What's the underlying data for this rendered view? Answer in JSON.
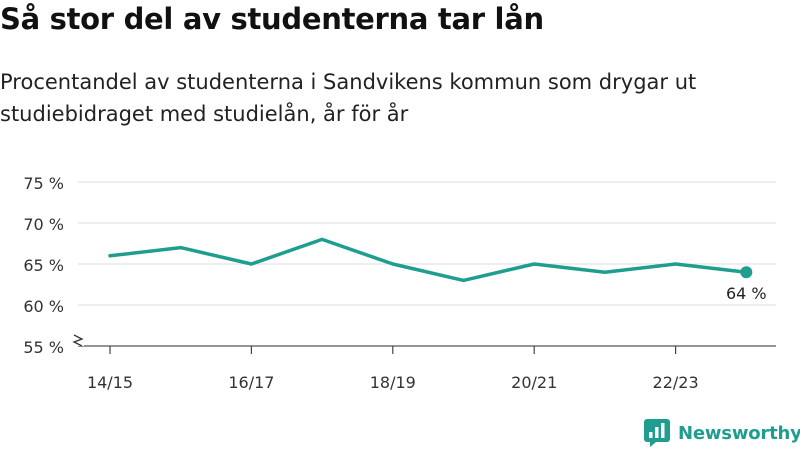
{
  "title": "Så stor del av studenterna tar lån",
  "subtitle": "Procentandel av studenterna i Sandvikens kommun som drygar ut studiebidraget med studielån, år för år",
  "brand": {
    "name": "Newsworthy",
    "icon": "newsworthy-logo-icon",
    "color": "#1f9e8f"
  },
  "chart_data": {
    "type": "line",
    "title": "Så stor del av studenterna tar lån",
    "subtitle": "Procentandel av studenterna i Sandvikens kommun som drygar ut studiebidraget med studielån, år för år",
    "xlabel": "",
    "ylabel": "",
    "x": [
      "14/15",
      "15/16",
      "16/17",
      "17/18",
      "18/19",
      "19/20",
      "20/21",
      "21/22",
      "22/23",
      "23/24"
    ],
    "x_tick_labels": [
      "14/15",
      "16/17",
      "18/19",
      "20/21",
      "22/23"
    ],
    "y_ticks": [
      55,
      60,
      65,
      70,
      75
    ],
    "y_tick_labels": [
      "55 %",
      "60 %",
      "65 %",
      "70 %",
      "75 %"
    ],
    "ylim": [
      55,
      75
    ],
    "y_axis_break": true,
    "grid": true,
    "series": [
      {
        "values": [
          66,
          67,
          65,
          68,
          65,
          63,
          65,
          64,
          65,
          64
        ],
        "color": "#1f9e8f"
      }
    ],
    "end_label": "64 %"
  }
}
